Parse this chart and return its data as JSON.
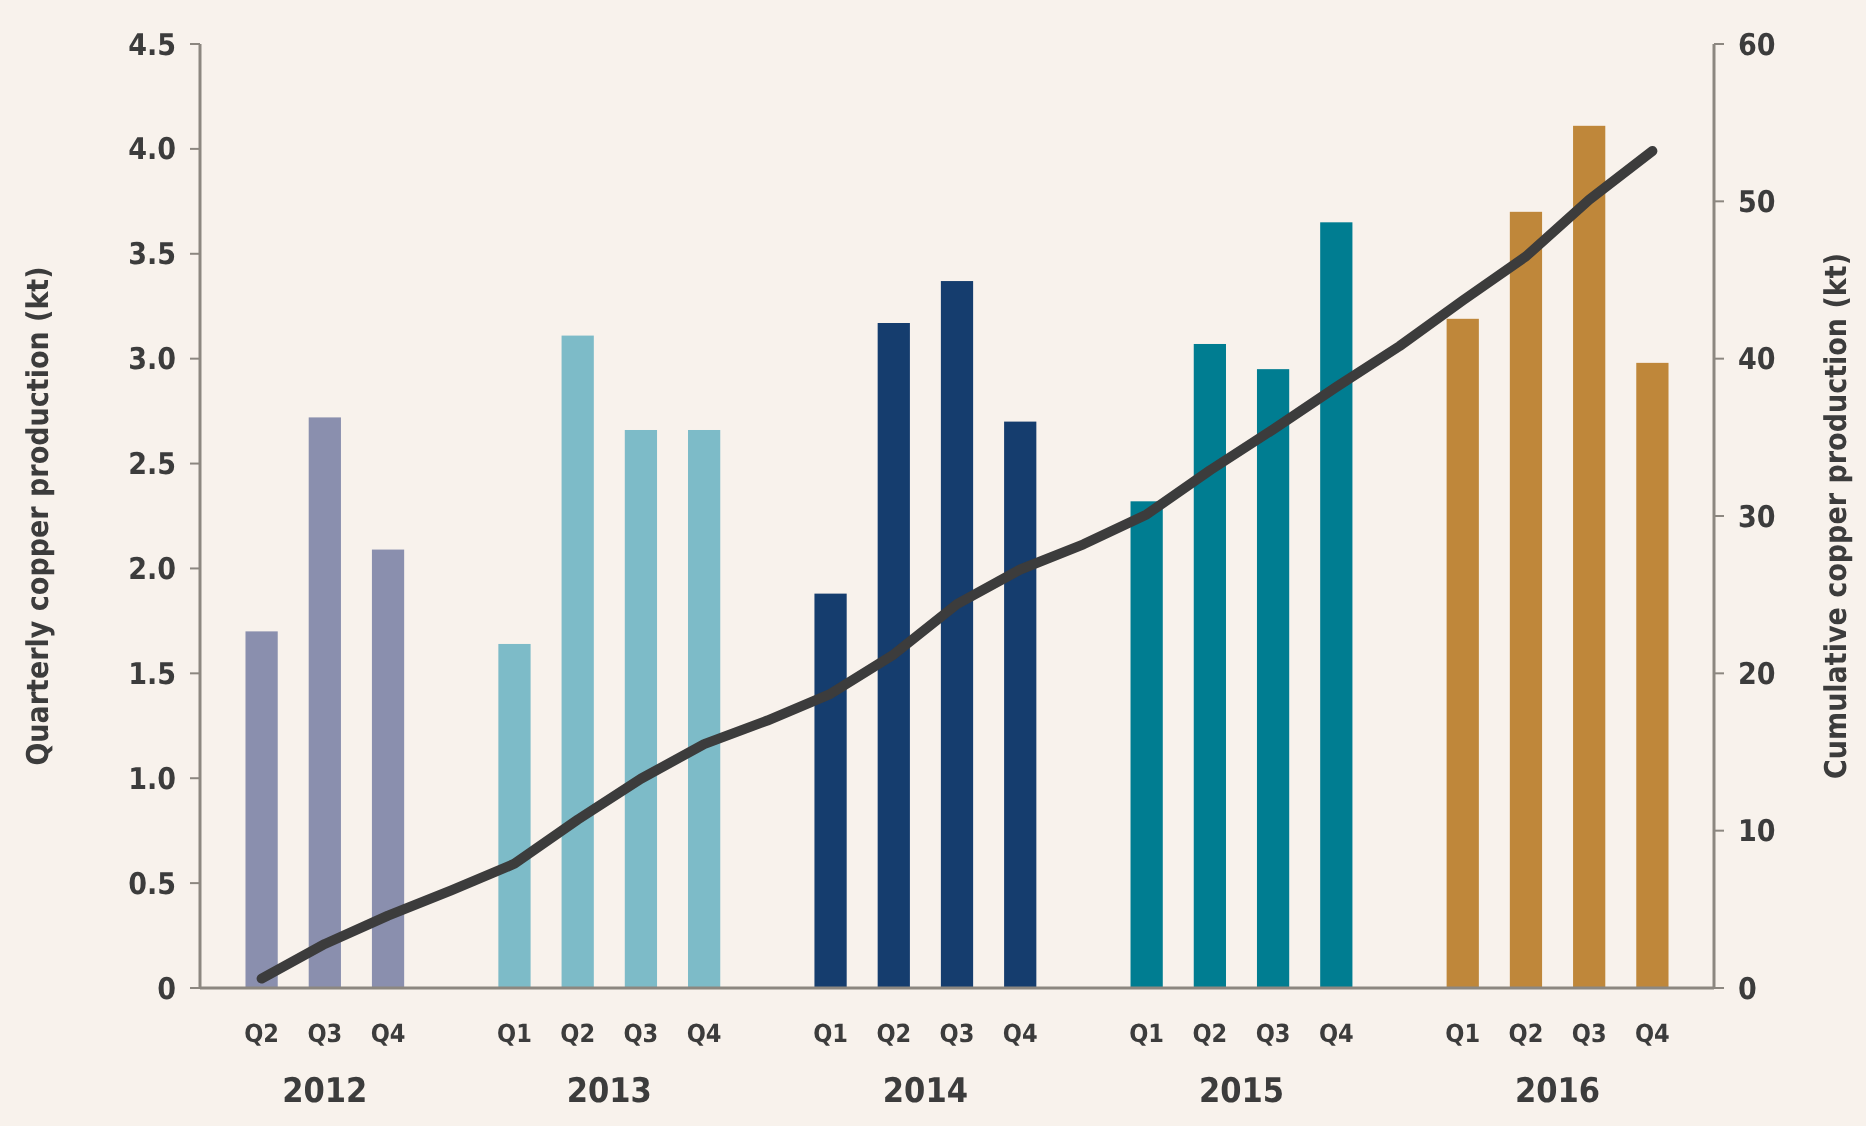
{
  "chart_data": {
    "type": "bar",
    "ylabel": "Quarterly copper production (kt)",
    "y2label": "Cumulative copper production (kt)",
    "categories": [
      "Q2",
      "Q3",
      "Q4",
      null,
      "Q1",
      "Q2",
      "Q3",
      "Q4",
      null,
      "Q1",
      "Q2",
      "Q3",
      "Q4",
      null,
      "Q1",
      "Q2",
      "Q3",
      "Q4",
      null,
      "Q1",
      "Q2",
      "Q3",
      "Q4"
    ],
    "series": [
      {
        "values": [
          1.7,
          2.72,
          2.09,
          null,
          1.64,
          3.11,
          2.66,
          2.66,
          null,
          1.88,
          3.17,
          3.37,
          2.7,
          null,
          2.32,
          3.07,
          2.95,
          3.65,
          null,
          3.19,
          3.7,
          4.11,
          2.98
        ],
        "colors": [
          "#8a8fae",
          "#8a8fae",
          "#8a8fae",
          null,
          "#7dbbc8",
          "#7dbbc8",
          "#7dbbc8",
          "#7dbbc8",
          null,
          "#153d6e",
          "#153d6e",
          "#153d6e",
          "#153d6e",
          null,
          "#007d91",
          "#007d91",
          "#007d91",
          "#007d91",
          null,
          "#bf873a",
          "#bf873a",
          "#bf873a",
          "#bf873a"
        ]
      },
      {
        "type": "line",
        "axis": "y2",
        "color": "#3c3c3c",
        "values": [
          0.6,
          2.8,
          4.6,
          6.2,
          7.9,
          10.7,
          13.3,
          15.5,
          17.0,
          18.7,
          21.2,
          24.4,
          26.6,
          28.2,
          30.1,
          32.9,
          35.5,
          38.2,
          40.8,
          43.7,
          46.5,
          50.1,
          53.2
        ]
      }
    ],
    "ylim": [
      0,
      4.5
    ],
    "yticks": [
      0,
      {
        "value": 0.5,
        "label": "0.5"
      },
      {
        "value": 1,
        "label": "1.0"
      },
      {
        "value": 1.5,
        "label": "1.5"
      },
      {
        "value": 2,
        "label": "2.0"
      },
      {
        "value": 2.5,
        "label": "2.5"
      },
      {
        "value": 3,
        "label": "3.0"
      },
      {
        "value": 3.5,
        "label": "3.5"
      },
      {
        "value": 4,
        "label": "4.0"
      },
      {
        "value": 4.5,
        "label": "4.5"
      }
    ],
    "y2lim": [
      0,
      60
    ],
    "y2ticks": [
      0,
      10,
      20,
      30,
      40,
      50,
      60
    ],
    "annotations": [
      "2012",
      "2013",
      "2014",
      "2015",
      "2016"
    ],
    "grid": false,
    "marker": "none",
    "line_style": "solid"
  }
}
